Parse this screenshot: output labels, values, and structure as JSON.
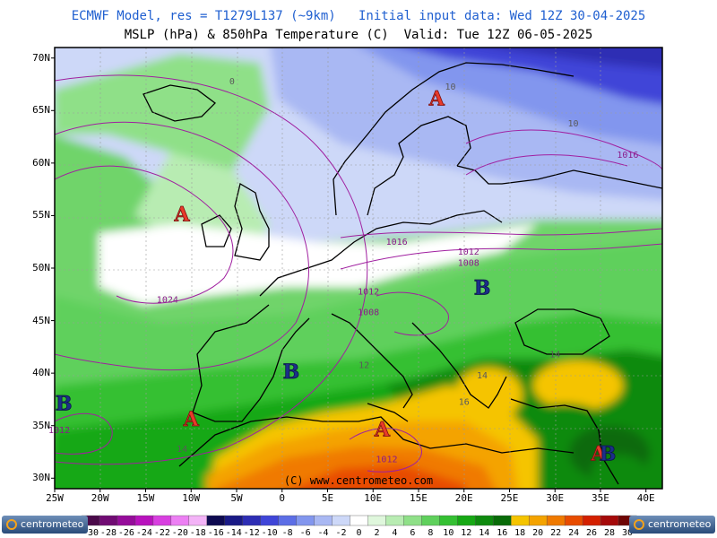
{
  "header": {
    "line1": "ECMWF Model, res = T1279L137 (~9km)   Initial input data: Wed 12Z 30-04-2025",
    "line2": "MSLP (hPa) & 850hPa Temperature (C)  Valid: Tue 12Z 06-05-2025"
  },
  "map": {
    "lat_labels": [
      "70N",
      "65N",
      "60N",
      "55N",
      "50N",
      "45N",
      "40N",
      "35N",
      "30N"
    ],
    "lon_labels": [
      "25W",
      "20W",
      "15W",
      "10W",
      "5W",
      "0",
      "5E",
      "10E",
      "15E",
      "20E",
      "25E",
      "30E",
      "35E",
      "40E"
    ],
    "pressure_centers": [
      {
        "label": "A",
        "kind": "high",
        "lon": 17,
        "lat": 66
      },
      {
        "label": "A",
        "kind": "high",
        "lon": -11,
        "lat": 55
      },
      {
        "label": "B",
        "kind": "low",
        "lon": 22,
        "lat": 48
      },
      {
        "label": "B",
        "kind": "low",
        "lon": 1,
        "lat": 40
      },
      {
        "label": "B",
        "kind": "low",
        "lon": -24,
        "lat": 37
      },
      {
        "label": "A",
        "kind": "high",
        "lon": -10,
        "lat": 35.5
      },
      {
        "label": "A",
        "kind": "high",
        "lon": 11,
        "lat": 34.5
      },
      {
        "label": "A",
        "kind": "high",
        "lon": 34.8,
        "lat": 32.2
      },
      {
        "label": "B",
        "kind": "low",
        "lon": 35.8,
        "lat": 32.2
      }
    ],
    "isobar_labels": [
      {
        "text": "1016",
        "lon": 12.6,
        "lat": 52.2
      },
      {
        "text": "1012",
        "lon": 20.5,
        "lat": 51.3
      },
      {
        "text": "1008",
        "lon": 20.5,
        "lat": 50.2
      },
      {
        "text": "1024",
        "lon": -12.6,
        "lat": 46.7
      },
      {
        "text": "1012",
        "lon": 9.5,
        "lat": 47.5
      },
      {
        "text": "1008",
        "lon": 9.5,
        "lat": 45.5
      },
      {
        "text": "1016",
        "lon": 38,
        "lat": 60.5
      },
      {
        "text": "1012",
        "lon": -24.5,
        "lat": 34.3
      },
      {
        "text": "1012",
        "lon": 11.5,
        "lat": 31.5
      }
    ],
    "temp_labels": [
      {
        "text": "10",
        "lon": 18.5,
        "lat": 67
      },
      {
        "text": "10",
        "lon": 32,
        "lat": 63.5
      },
      {
        "text": "0",
        "lon": -5.5,
        "lat": 67.5
      },
      {
        "text": "12",
        "lon": 9,
        "lat": 40.5
      },
      {
        "text": "14",
        "lon": 22,
        "lat": 39.5
      },
      {
        "text": "14",
        "lon": 30,
        "lat": 41.5
      },
      {
        "text": "16",
        "lon": 20,
        "lat": 37
      },
      {
        "text": "14",
        "lon": -11,
        "lat": 32.5
      }
    ],
    "copyright": "(C) www.centrometeo.com"
  },
  "colorbar": {
    "labels": [
      "-30",
      "-28",
      "-26",
      "-24",
      "-22",
      "-20",
      "-18",
      "-16",
      "-14",
      "-12",
      "-10",
      "-8",
      "-6",
      "-4",
      "-2",
      "0",
      "2",
      "4",
      "6",
      "8",
      "10",
      "12",
      "14",
      "16",
      "18",
      "20",
      "22",
      "24",
      "26",
      "28",
      "30"
    ],
    "colors": [
      "#4a0a4a",
      "#700b73",
      "#950c9a",
      "#b812bd",
      "#d83fe0",
      "#ec7ff3",
      "#f3b3f7",
      "#0e0a50",
      "#1a1a86",
      "#2d2db4",
      "#3f45d8",
      "#5c6ee6",
      "#8296ee",
      "#a9b8f3",
      "#cdd8f8",
      "#ffffff",
      "#dff7dc",
      "#b8ecb2",
      "#8fe088",
      "#5fd05c",
      "#34c032",
      "#16a814",
      "#0e8a0e",
      "#086b08",
      "#f5c400",
      "#f4a300",
      "#f07a00",
      "#e84c00",
      "#d42000",
      "#a50a0a",
      "#6e0505"
    ]
  },
  "logos": {
    "left": "centrometeo",
    "right": "centrometeo"
  }
}
